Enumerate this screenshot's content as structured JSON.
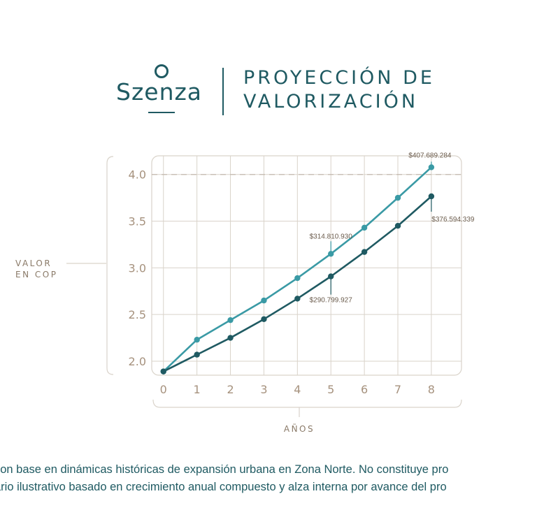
{
  "brand": {
    "name": "Szenza"
  },
  "header": {
    "title_line1": "PROYECCIÓN DE",
    "title_line2": "VALORIZACIÓN"
  },
  "chart_data": {
    "type": "line",
    "x": [
      0,
      1,
      2,
      3,
      4,
      5,
      6,
      7,
      8
    ],
    "xlabel": "AÑOS",
    "ylabel_lines": [
      "VALOR",
      "EN COP"
    ],
    "ylim": [
      1.85,
      4.2
    ],
    "xlim": [
      -0.35,
      8.9
    ],
    "yticks": [
      "2.0",
      "2.5",
      "3.0",
      "3.5",
      "4.0"
    ],
    "ytick_values": [
      2.0,
      2.5,
      3.0,
      3.5,
      4.0
    ],
    "xticks": [
      "0",
      "1",
      "2",
      "3",
      "4",
      "5",
      "6",
      "7",
      "8"
    ],
    "grid": true,
    "series": [
      {
        "color": "#3a9aa5",
        "values": [
          1.89,
          2.23,
          2.44,
          2.65,
          2.89,
          3.15,
          3.43,
          3.75,
          4.077
        ]
      },
      {
        "color": "#1f5a62",
        "values": [
          1.89,
          2.07,
          2.25,
          2.45,
          2.67,
          2.908,
          3.17,
          3.45,
          3.766
        ]
      }
    ],
    "annotations": [
      {
        "text": "$407.689.284",
        "series": 0,
        "x": 8,
        "placement": "above"
      },
      {
        "text": "$376.594.339",
        "series": 1,
        "x": 8,
        "placement": "below-right"
      },
      {
        "text": "$314.810.930",
        "series": 0,
        "x": 5,
        "placement": "above"
      },
      {
        "text": "$290.799.927",
        "series": 1,
        "x": 5,
        "placement": "below"
      }
    ],
    "reference_line_y": 4.0
  },
  "footnote": {
    "line1": "con base en dinámicas históricas de expansión urbana en Zona Norte. No constituye pro",
    "line2": "ario ilustrativo basado en crecimiento anual compuesto y alza interna por avance del pro"
  }
}
